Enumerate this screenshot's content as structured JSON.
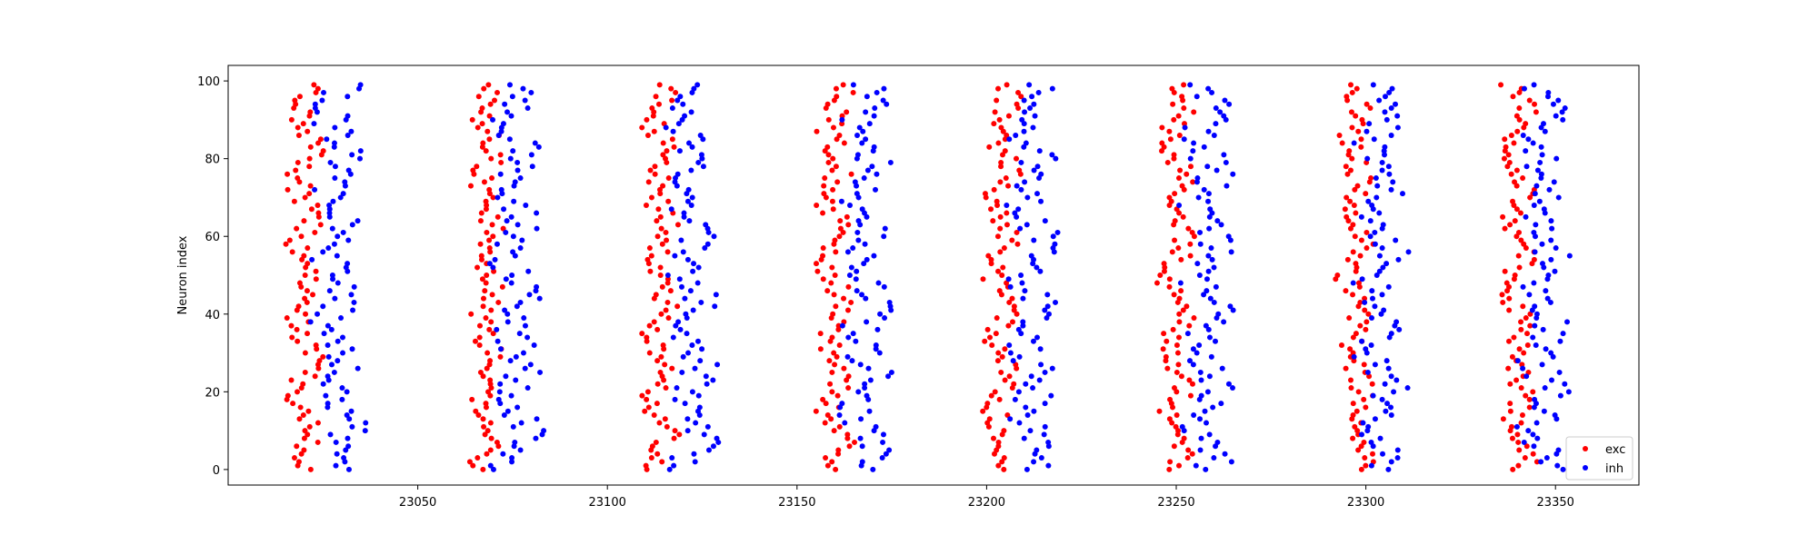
{
  "chart_data": {
    "type": "scatter",
    "title": "",
    "xlabel": "",
    "ylabel": "Neuron index",
    "xlim": [
      23000,
      23372
    ],
    "ylim": [
      -4,
      104
    ],
    "xticks": [
      23050,
      23100,
      23150,
      23200,
      23250,
      23300,
      23350
    ],
    "yticks": [
      0,
      20,
      40,
      60,
      80,
      100
    ],
    "grid": false,
    "legend_position": "bottom-right",
    "n_neurons": 100,
    "series": [
      {
        "name": "exc",
        "color": "#ff0000",
        "burst_centers": [
          23020,
          23068,
          23114,
          23160,
          23204,
          23250,
          23297,
          23340
        ],
        "burst_width": 7,
        "x": [],
        "y": []
      },
      {
        "name": "inh",
        "color": "#0000ff",
        "burst_centers": [
          23029,
          23076,
          23122,
          23168,
          23212,
          23258,
          23304,
          23347
        ],
        "burst_width": 10,
        "x": [],
        "y": []
      }
    ]
  }
}
